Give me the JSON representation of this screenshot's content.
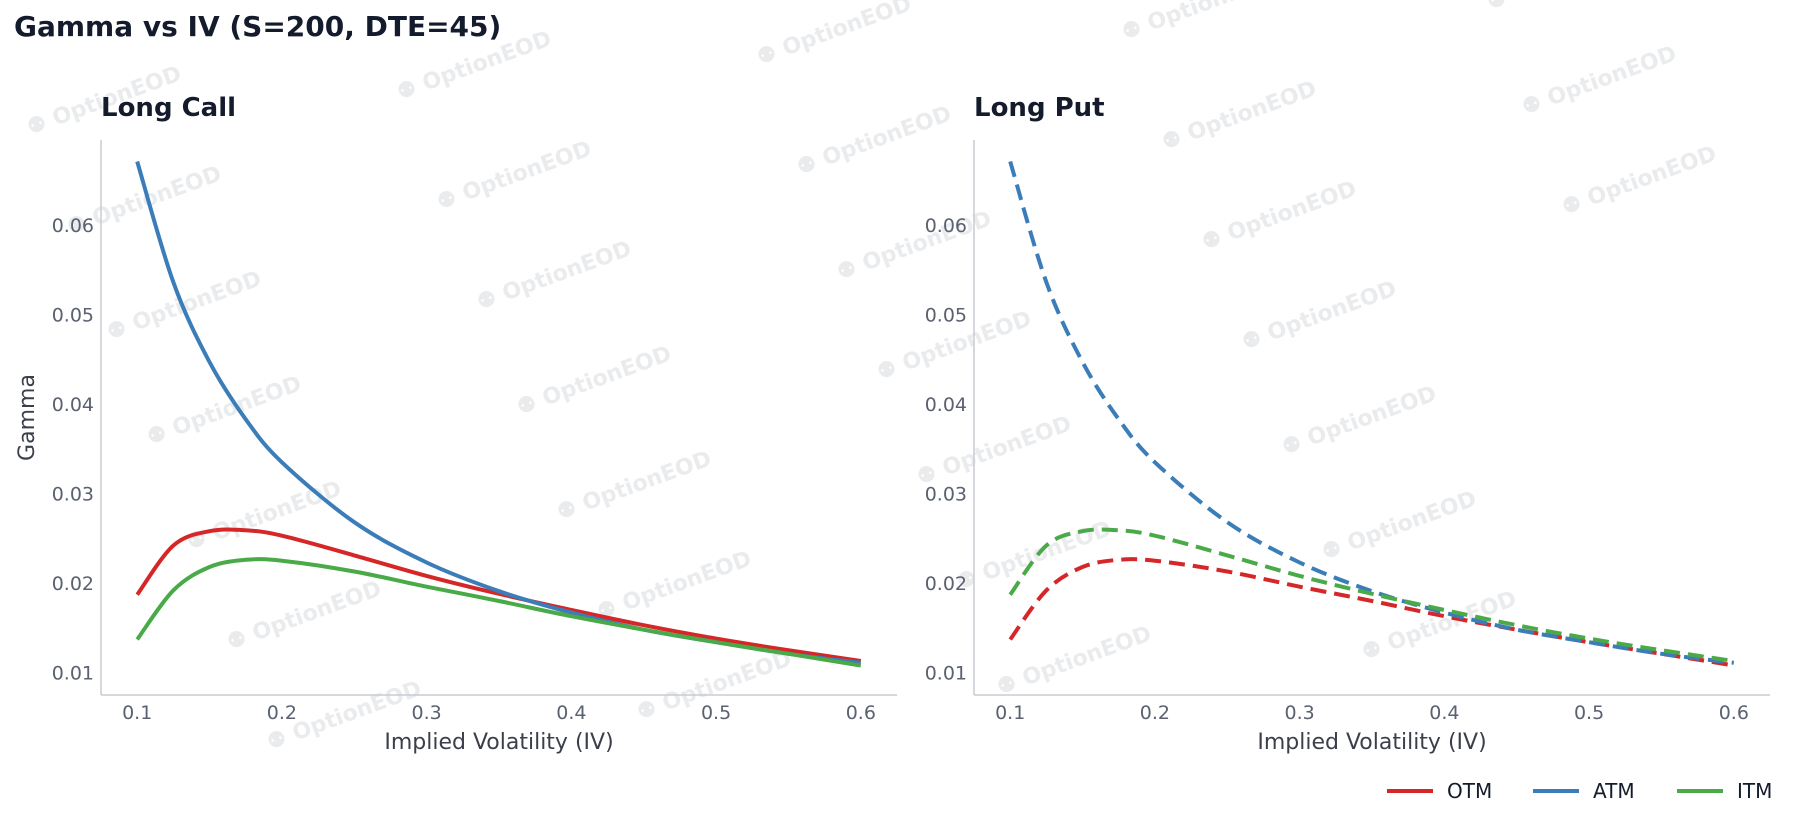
{
  "figure_title": "Gamma vs IV (S=200, DTE=45)",
  "watermark": "OptionEOD",
  "colors": {
    "OTM": "#d62728",
    "ATM": "#3a7db8",
    "ITM": "#4aaa48",
    "axis": "#c8ccd2",
    "text": "#141b2d"
  },
  "legend": [
    "OTM",
    "ATM",
    "ITM"
  ],
  "chart_data": [
    {
      "type": "line",
      "title": "Long Call",
      "xlabel": "Implied Volatility (IV)",
      "ylabel": "Gamma",
      "xlim": [
        0.075,
        0.625
      ],
      "ylim": [
        0.0075,
        0.0695
      ],
      "xticks": [
        0.1,
        0.2,
        0.3,
        0.4,
        0.5,
        0.6
      ],
      "yticks": [
        0.01,
        0.02,
        0.03,
        0.04,
        0.05,
        0.06
      ],
      "line_style": "solid",
      "x": [
        0.1,
        0.125,
        0.15,
        0.175,
        0.2,
        0.25,
        0.3,
        0.35,
        0.4,
        0.45,
        0.5,
        0.55,
        0.6
      ],
      "series": [
        {
          "name": "OTM",
          "values": [
            0.0187,
            0.0242,
            0.0258,
            0.0259,
            0.0253,
            0.0231,
            0.0208,
            0.0188,
            0.017,
            0.0153,
            0.0138,
            0.0125,
            0.0113
          ]
        },
        {
          "name": "ATM",
          "values": [
            0.0671,
            0.0536,
            0.0447,
            0.0383,
            0.0335,
            0.0268,
            0.0223,
            0.0191,
            0.0167,
            0.0148,
            0.0134,
            0.0121,
            0.0111
          ]
        },
        {
          "name": "ITM",
          "values": [
            0.0137,
            0.0192,
            0.0218,
            0.0226,
            0.0225,
            0.0213,
            0.0196,
            0.018,
            0.0163,
            0.0148,
            0.0134,
            0.0121,
            0.0108
          ]
        }
      ]
    },
    {
      "type": "line",
      "title": "Long Put",
      "xlabel": "Implied Volatility (IV)",
      "ylabel": "",
      "xlim": [
        0.075,
        0.625
      ],
      "ylim": [
        0.0075,
        0.0695
      ],
      "xticks": [
        0.1,
        0.2,
        0.3,
        0.4,
        0.5,
        0.6
      ],
      "yticks": [
        0.01,
        0.02,
        0.03,
        0.04,
        0.05,
        0.06
      ],
      "line_style": "dashed",
      "x": [
        0.1,
        0.125,
        0.15,
        0.175,
        0.2,
        0.25,
        0.3,
        0.35,
        0.4,
        0.45,
        0.5,
        0.55,
        0.6
      ],
      "series": [
        {
          "name": "OTM",
          "values": [
            0.0137,
            0.0192,
            0.0218,
            0.0226,
            0.0225,
            0.0213,
            0.0196,
            0.018,
            0.0163,
            0.0148,
            0.0134,
            0.0121,
            0.0108
          ]
        },
        {
          "name": "ATM",
          "values": [
            0.0671,
            0.0536,
            0.0447,
            0.0383,
            0.0335,
            0.0268,
            0.0223,
            0.0191,
            0.0167,
            0.0148,
            0.0134,
            0.0121,
            0.0111
          ]
        },
        {
          "name": "ITM",
          "values": [
            0.0187,
            0.0242,
            0.0258,
            0.0259,
            0.0253,
            0.0231,
            0.0208,
            0.0188,
            0.017,
            0.0153,
            0.0138,
            0.0125,
            0.0113
          ]
        }
      ]
    }
  ]
}
